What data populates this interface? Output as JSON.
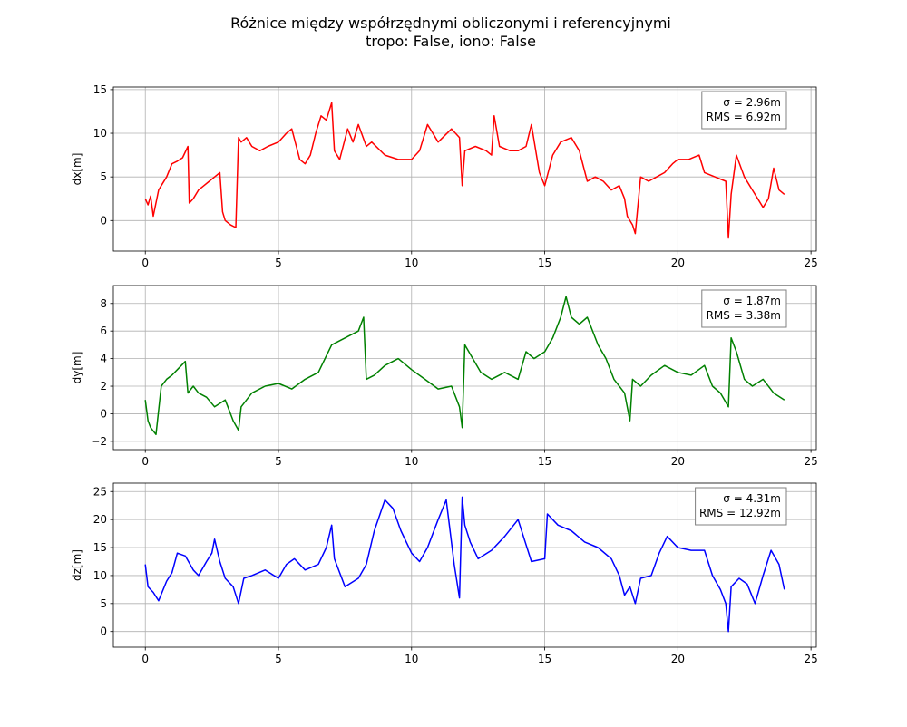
{
  "chart_data": {
    "title": "Różnice między współrzędnymi obliczonymi i referencyjnymi",
    "subtitle": "tropo: False, iono: False",
    "subplots": [
      {
        "type": "line",
        "ylabel": "dx[m]",
        "xlim": [
          -1.2,
          25.2
        ],
        "ylim": [
          -3.5,
          15.3
        ],
        "yticks": [
          0,
          5,
          10,
          15
        ],
        "xticks": [
          0,
          5,
          10,
          15,
          20,
          25
        ],
        "grid": true,
        "color": "#ff0000",
        "legend": {
          "position": "top-right",
          "lines": [
            "σ = 2.96m",
            "RMS = 6.92m"
          ]
        },
        "x": [
          0,
          0.1,
          0.2,
          0.3,
          0.5,
          0.6,
          0.8,
          1.0,
          1.2,
          1.4,
          1.6,
          1.65,
          1.8,
          2.0,
          2.2,
          2.4,
          2.6,
          2.8,
          2.9,
          3.0,
          3.2,
          3.4,
          3.5,
          3.6,
          3.8,
          4.0,
          4.3,
          4.6,
          5.0,
          5.3,
          5.5,
          5.8,
          6.0,
          6.2,
          6.4,
          6.6,
          6.8,
          7.0,
          7.1,
          7.3,
          7.6,
          7.8,
          8.0,
          8.3,
          8.5,
          9.0,
          9.5,
          10.0,
          10.3,
          10.6,
          11.0,
          11.5,
          11.8,
          11.9,
          12.0,
          12.4,
          12.8,
          13.0,
          13.1,
          13.3,
          13.7,
          14.0,
          14.3,
          14.5,
          14.8,
          15.0,
          15.3,
          15.6,
          16.0,
          16.3,
          16.6,
          16.9,
          17.2,
          17.5,
          17.8,
          18.0,
          18.1,
          18.3,
          18.4,
          18.6,
          18.9,
          19.2,
          19.5,
          19.8,
          20.0,
          20.4,
          20.8,
          21.0,
          21.4,
          21.8,
          21.9,
          22.0,
          22.2,
          22.5,
          22.8,
          23.0,
          23.2,
          23.4,
          23.6,
          23.8,
          24.0
        ],
        "y": [
          2.5,
          1.8,
          2.8,
          0.5,
          3.5,
          4.0,
          5.0,
          6.5,
          6.8,
          7.2,
          8.5,
          2.0,
          2.5,
          3.5,
          4.0,
          4.5,
          5.0,
          5.5,
          1.0,
          0.0,
          -0.5,
          -0.8,
          9.5,
          9.0,
          9.5,
          8.5,
          8.0,
          8.5,
          9.0,
          10.0,
          10.5,
          7.0,
          6.5,
          7.5,
          10.0,
          12.0,
          11.5,
          13.5,
          8.0,
          7.0,
          10.5,
          9.0,
          11.0,
          8.5,
          9.0,
          7.5,
          7.0,
          7.0,
          8.0,
          11.0,
          9.0,
          10.5,
          9.5,
          4.0,
          8.0,
          8.5,
          8.0,
          7.5,
          12.0,
          8.5,
          8.0,
          8.0,
          8.5,
          11.0,
          5.5,
          4.0,
          7.5,
          9.0,
          9.5,
          8.0,
          4.5,
          5.0,
          4.5,
          3.5,
          4.0,
          2.5,
          0.5,
          -0.5,
          -1.5,
          5.0,
          4.5,
          5.0,
          5.5,
          6.5,
          7.0,
          7.0,
          7.5,
          5.5,
          5.0,
          4.5,
          -2.0,
          3.0,
          7.5,
          5.0,
          3.5,
          2.5,
          1.5,
          2.5,
          6.0,
          3.5,
          3.0
        ]
      },
      {
        "type": "line",
        "ylabel": "dy[m]",
        "xlim": [
          -1.2,
          25.2
        ],
        "ylim": [
          -2.6,
          9.3
        ],
        "yticks": [
          -2,
          0,
          2,
          4,
          6,
          8
        ],
        "xticks": [
          0,
          5,
          10,
          15,
          20,
          25
        ],
        "grid": true,
        "color": "#008000",
        "legend": {
          "position": "top-right",
          "lines": [
            "σ = 1.87m",
            "RMS = 3.38m"
          ]
        },
        "x": [
          0,
          0.1,
          0.2,
          0.4,
          0.6,
          0.8,
          1.0,
          1.2,
          1.5,
          1.6,
          1.8,
          2.0,
          2.3,
          2.6,
          3.0,
          3.3,
          3.5,
          3.6,
          4.0,
          4.5,
          5.0,
          5.5,
          6.0,
          6.5,
          7.0,
          7.5,
          8.0,
          8.2,
          8.3,
          8.6,
          9.0,
          9.5,
          10.0,
          10.5,
          11.0,
          11.5,
          11.8,
          11.9,
          12.0,
          12.3,
          12.6,
          13.0,
          13.5,
          14.0,
          14.3,
          14.6,
          15.0,
          15.3,
          15.6,
          15.8,
          16.0,
          16.3,
          16.6,
          17.0,
          17.3,
          17.6,
          18.0,
          18.2,
          18.3,
          18.6,
          19.0,
          19.5,
          20.0,
          20.5,
          21.0,
          21.3,
          21.6,
          21.9,
          22.0,
          22.2,
          22.5,
          22.8,
          23.2,
          23.6,
          24.0
        ],
        "y": [
          1.0,
          -0.5,
          -1.0,
          -1.5,
          2.0,
          2.5,
          2.8,
          3.2,
          3.8,
          1.5,
          2.0,
          1.5,
          1.2,
          0.5,
          1.0,
          -0.5,
          -1.2,
          0.5,
          1.5,
          2.0,
          2.2,
          1.8,
          2.5,
          3.0,
          5.0,
          5.5,
          6.0,
          7.0,
          2.5,
          2.8,
          3.5,
          4.0,
          3.2,
          2.5,
          1.8,
          2.0,
          0.5,
          -1.0,
          5.0,
          4.0,
          3.0,
          2.5,
          3.0,
          2.5,
          4.5,
          4.0,
          4.5,
          5.5,
          7.0,
          8.5,
          7.0,
          6.5,
          7.0,
          5.0,
          4.0,
          2.5,
          1.5,
          -0.5,
          2.5,
          2.0,
          2.8,
          3.5,
          3.0,
          2.8,
          3.5,
          2.0,
          1.5,
          0.5,
          5.5,
          4.5,
          2.5,
          2.0,
          2.5,
          1.5,
          1.0
        ]
      },
      {
        "type": "line",
        "ylabel": "dz[m]",
        "xlim": [
          -1.2,
          25.2
        ],
        "ylim": [
          -2.8,
          26.5
        ],
        "yticks": [
          0,
          5,
          10,
          15,
          20,
          25
        ],
        "xticks": [
          0,
          5,
          10,
          15,
          20,
          25
        ],
        "grid": true,
        "color": "#0000ff",
        "legend": {
          "position": "top-right",
          "lines": [
            "σ = 4.31m",
            "RMS = 12.92m"
          ]
        },
        "x": [
          0,
          0.1,
          0.3,
          0.5,
          0.8,
          1.0,
          1.2,
          1.5,
          1.8,
          2.0,
          2.3,
          2.5,
          2.6,
          2.8,
          3.0,
          3.3,
          3.5,
          3.7,
          4.0,
          4.5,
          5.0,
          5.3,
          5.6,
          6.0,
          6.5,
          6.8,
          7.0,
          7.1,
          7.5,
          8.0,
          8.3,
          8.6,
          9.0,
          9.3,
          9.6,
          10.0,
          10.3,
          10.6,
          11.0,
          11.3,
          11.6,
          11.8,
          11.9,
          12.0,
          12.2,
          12.5,
          13.0,
          13.5,
          14.0,
          14.5,
          15.0,
          15.1,
          15.5,
          16.0,
          16.5,
          17.0,
          17.5,
          17.8,
          18.0,
          18.2,
          18.4,
          18.6,
          19.0,
          19.3,
          19.6,
          20.0,
          20.5,
          21.0,
          21.3,
          21.6,
          21.8,
          21.9,
          22.0,
          22.3,
          22.6,
          22.9,
          23.2,
          23.5,
          23.8,
          24.0
        ],
        "y": [
          12.0,
          8.0,
          7.0,
          5.5,
          9.0,
          10.5,
          14.0,
          13.5,
          11.0,
          10.0,
          12.5,
          14.0,
          16.5,
          12.5,
          9.5,
          8.0,
          5.0,
          9.5,
          10.0,
          11.0,
          9.5,
          12.0,
          13.0,
          11.0,
          12.0,
          15.0,
          19.0,
          13.0,
          8.0,
          9.5,
          12.0,
          18.0,
          23.5,
          22.0,
          18.0,
          14.0,
          12.5,
          15.0,
          20.0,
          23.5,
          12.0,
          6.0,
          24.0,
          19.0,
          16.0,
          13.0,
          14.5,
          17.0,
          20.0,
          12.5,
          13.0,
          21.0,
          19.0,
          18.0,
          16.0,
          15.0,
          13.0,
          10.0,
          6.5,
          8.0,
          5.0,
          9.5,
          10.0,
          14.0,
          17.0,
          15.0,
          14.5,
          14.5,
          10.0,
          7.5,
          5.0,
          0.0,
          8.0,
          9.5,
          8.5,
          5.0,
          10.0,
          14.5,
          12.0,
          7.5
        ]
      }
    ]
  }
}
